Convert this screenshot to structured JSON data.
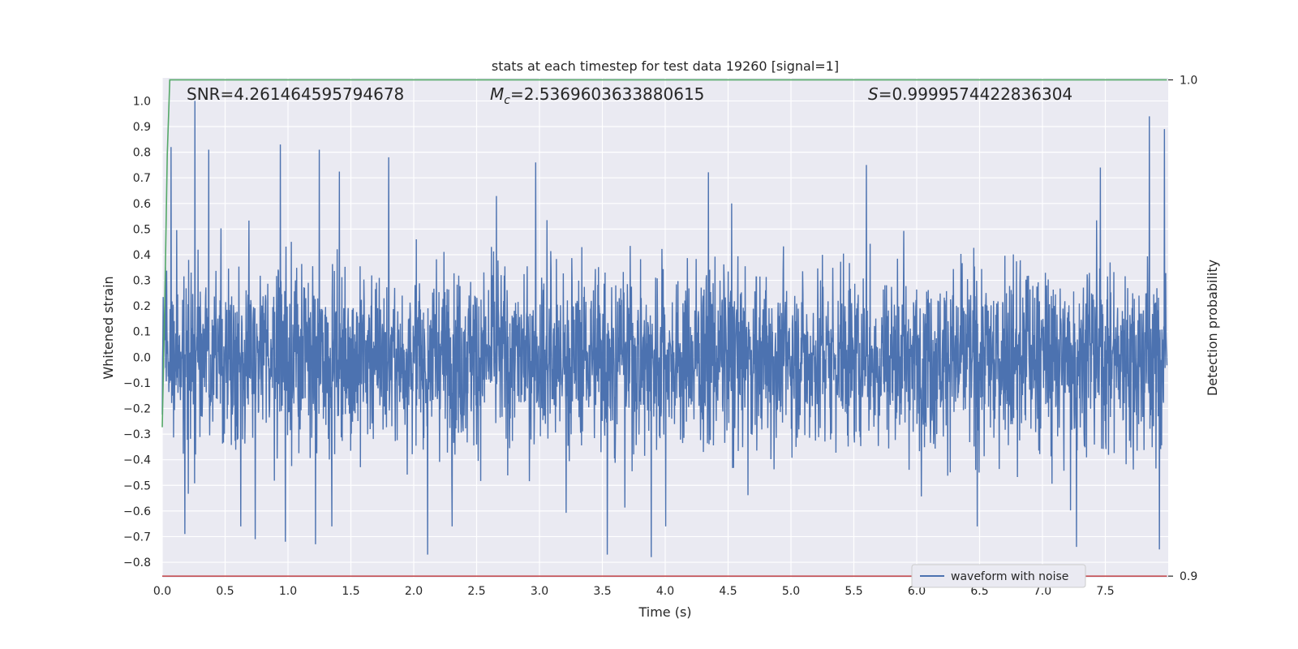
{
  "chart_data": {
    "type": "line",
    "title": "stats at each timestep for test data 19260 [signal=1]",
    "xlabel": "Time (s)",
    "ylabel": "Whitened strain",
    "ylabel_right": "Detection probability",
    "xlim": [
      0.0,
      8.0
    ],
    "ylim": [
      -0.86,
      1.09
    ],
    "ylim_right": [
      0.8997,
      1.0004
    ],
    "x_ticks": [
      "0.0",
      "0.5",
      "1.0",
      "1.5",
      "2.0",
      "2.5",
      "3.0",
      "3.5",
      "4.0",
      "4.5",
      "5.0",
      "5.5",
      "6.0",
      "6.5",
      "7.0",
      "7.5"
    ],
    "y_ticks": [
      "1.0",
      "0.9",
      "0.8",
      "0.7",
      "0.6",
      "0.5",
      "0.4",
      "0.3",
      "0.2",
      "0.1",
      "0.0",
      "−0.1",
      "−0.2",
      "−0.3",
      "−0.4",
      "−0.5",
      "−0.6",
      "−0.7",
      "−0.8"
    ],
    "y_ticks_right": [
      "1.0",
      "0.9"
    ],
    "grid": true,
    "annotations": {
      "snr": "SNR=4.261464595794678",
      "mc_symbol": "M",
      "mc_sub": "c",
      "mc_value": "=2.5369603633880615",
      "s_symbol": "S",
      "s_value": "=0.9999574422836304"
    },
    "legend": {
      "label": "waveform with noise",
      "placement": "lower-right"
    },
    "series": [
      {
        "name": "waveform with noise",
        "color": "#4c72b0",
        "axis": "left",
        "description": "noisy whitened strain, roughly ±0.4 with spikes",
        "n_samples": 3200,
        "spikes": [
          [
            0.26,
            1.0
          ],
          [
            0.07,
            0.82
          ],
          [
            0.94,
            0.83
          ],
          [
            1.25,
            0.81
          ],
          [
            0.37,
            0.81
          ],
          [
            2.97,
            0.76
          ],
          [
            7.85,
            0.94
          ],
          [
            7.97,
            0.89
          ],
          [
            7.46,
            0.74
          ],
          [
            3.89,
            -0.78
          ],
          [
            3.54,
            -0.77
          ],
          [
            2.11,
            -0.77
          ],
          [
            7.93,
            -0.75
          ],
          [
            0.18,
            -0.69
          ],
          [
            1.22,
            -0.73
          ],
          [
            0.98,
            -0.72
          ],
          [
            7.27,
            -0.74
          ],
          [
            0.74,
            -0.71
          ],
          [
            1.8,
            0.78
          ],
          [
            5.6,
            0.75
          ]
        ]
      },
      {
        "name": "",
        "color": "#55a868",
        "axis": "right",
        "x": [
          0.0,
          0.02,
          0.04,
          0.06,
          0.08,
          7.99
        ],
        "y": [
          0.93,
          0.955,
          0.985,
          1.0,
          1.0,
          1.0
        ]
      },
      {
        "name": "",
        "color": "#c44e52",
        "axis": "right",
        "x": [
          0.0,
          7.99
        ],
        "y": [
          0.9,
          0.9
        ]
      }
    ],
    "colors": {
      "background": "#eaeaf2",
      "grid": "#ffffff",
      "text": "#262626"
    }
  }
}
